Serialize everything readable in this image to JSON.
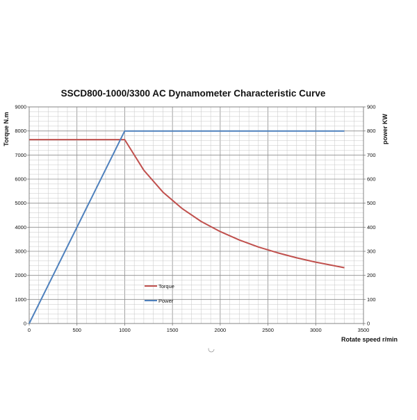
{
  "chart_data": {
    "type": "line",
    "title": "SSCD800-1000/3300 AC Dynamometer Characteristic Curve",
    "xlabel": "Rotate speed r/min",
    "ylabel_left": "Torque N.m",
    "ylabel_right": "power KW",
    "xlim": [
      0,
      3500
    ],
    "ylim_left": [
      0,
      9000
    ],
    "ylim_right": [
      0,
      900
    ],
    "x_ticks": [
      "0",
      "500",
      "1000",
      "1500",
      "2000",
      "2500",
      "3000",
      "3500"
    ],
    "y_left_ticks": [
      "0",
      "1000",
      "2000",
      "3000",
      "4000",
      "5000",
      "6000",
      "7000",
      "8000",
      "9000"
    ],
    "y_right_ticks": [
      "0",
      "100",
      "200",
      "300",
      "400",
      "500",
      "600",
      "700",
      "800",
      "900"
    ],
    "grid": true,
    "legend_position": "lower-left inside plot",
    "series": [
      {
        "name": "Torque",
        "axis": "left",
        "color": "#c0504d",
        "points": [
          [
            0,
            7640
          ],
          [
            1000,
            7640
          ],
          [
            1200,
            6370
          ],
          [
            1400,
            5460
          ],
          [
            1600,
            4780
          ],
          [
            1800,
            4240
          ],
          [
            2000,
            3820
          ],
          [
            2200,
            3470
          ],
          [
            2400,
            3180
          ],
          [
            2600,
            2940
          ],
          [
            2800,
            2730
          ],
          [
            3000,
            2550
          ],
          [
            3300,
            2320
          ]
        ]
      },
      {
        "name": "Power",
        "axis": "right",
        "color": "#4f81bd",
        "points": [
          [
            0,
            0
          ],
          [
            1000,
            800
          ],
          [
            3300,
            800
          ]
        ]
      }
    ]
  }
}
